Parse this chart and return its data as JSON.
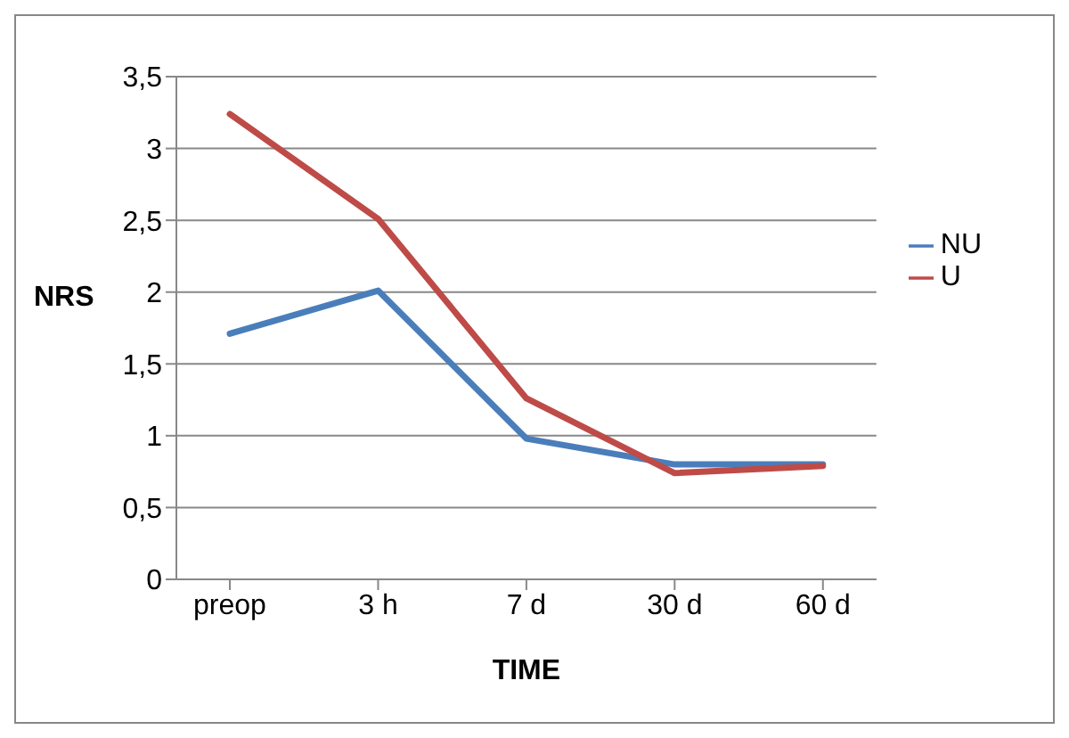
{
  "chart_data": {
    "type": "line",
    "categories": [
      "preop",
      "3 h",
      "7 d",
      "30 d",
      "60 d"
    ],
    "series": [
      {
        "name": "NU",
        "color": "#4a7ebb",
        "values": [
          1.71,
          2.01,
          0.98,
          0.8,
          0.8
        ]
      },
      {
        "name": "U",
        "color": "#be4b48",
        "values": [
          3.24,
          2.51,
          1.26,
          0.74,
          0.79
        ]
      }
    ],
    "xlabel": "TIME",
    "ylabel": "NRS",
    "ylim": [
      0,
      3.5
    ],
    "yticks": [
      0,
      {
        "value": 0.5,
        "label": "0,5"
      },
      1,
      {
        "value": 1.5,
        "label": "1,5"
      },
      2,
      {
        "value": 2.5,
        "label": "2,5"
      },
      3,
      {
        "value": 3.5,
        "label": "3,5"
      }
    ],
    "grid": "y",
    "legend": "top right",
    "marker": "none",
    "line_style": "solid"
  }
}
